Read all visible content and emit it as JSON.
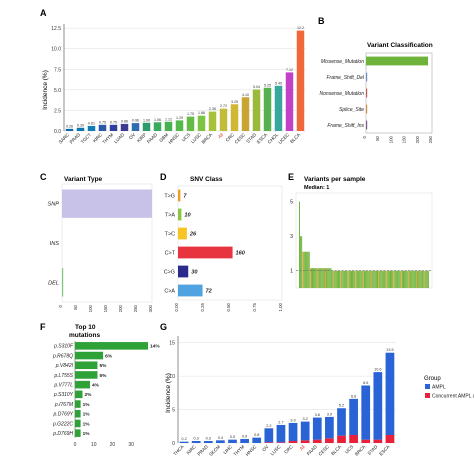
{
  "chart_data": [
    {
      "panel": "A",
      "type": "bar",
      "ylabel": "Incidence (%)",
      "ylim": [
        0,
        13
      ],
      "yticks": [
        "0.0",
        "2.5",
        "5.0",
        "7.5",
        "10.0",
        "12.5"
      ],
      "ytick_values": [
        0,
        2.5,
        5,
        7.5,
        10,
        12.5
      ],
      "grid": true,
      "categories": [
        "SARC",
        "PRAD",
        "TGCT",
        "KIRC",
        "THYM",
        "LUAD",
        "OV",
        "KIRP",
        "PAAD",
        "GBM",
        "HNSC",
        "UCS",
        "LUSC",
        "BRCA",
        "All",
        "CRC",
        "CESC",
        "STAD",
        "ESCA",
        "CHOL",
        "UCEC",
        "BLCA"
      ],
      "values": [
        0.26,
        0.39,
        0.61,
        0.75,
        0.75,
        0.86,
        0.96,
        1.0,
        1.06,
        1.12,
        1.29,
        1.75,
        1.86,
        2.36,
        2.72,
        3.25,
        4.1,
        5.04,
        5.25,
        5.49,
        7.12,
        12.2
      ],
      "value_labels": [
        "0.26",
        "0.39",
        "0.61",
        "0.75",
        "0.75",
        "0.86",
        "0.96",
        "1.00",
        "1.06",
        "1.12",
        "1.29",
        "1.75",
        "1.86",
        "2.36",
        "2.72",
        "3.25",
        "4.10",
        "5.04",
        "5.25",
        "5.49",
        "7.12",
        "12.2"
      ],
      "colors": [
        "#0b6aa6",
        "#0c75b0",
        "#0e7cb6",
        "#2b57a8",
        "#303f9f",
        "#3d3a92",
        "#2f6db2",
        "#2c9c6f",
        "#3aab5c",
        "#48b050",
        "#54b84a",
        "#64bc46",
        "#7cc542",
        "#a8c13b",
        "#c2bd39",
        "#d1b834",
        "#c8a532",
        "#9bba3c",
        "#55b04f",
        "#3aa6a0",
        "#c341c6",
        "#f0683a"
      ]
    },
    {
      "panel": "B",
      "type": "bar",
      "orientation": "horizontal",
      "title": "Variant Classification",
      "categories": [
        "Missense_Mutation",
        "Frame_Shift_Del",
        "Nonsense_Mutation",
        "Splice_Site",
        "Frame_Shift_Ins"
      ],
      "values": [
        235,
        4,
        4,
        3,
        2
      ],
      "colors": [
        "#6fb43a",
        "#6c8fc8",
        "#c25b57",
        "#d08e4a",
        "#7a5c8c"
      ],
      "xticks": [
        "0",
        "50",
        "100",
        "150",
        "200",
        "250"
      ],
      "xlim": [
        0,
        250
      ]
    },
    {
      "panel": "C",
      "type": "bar",
      "orientation": "horizontal",
      "title": "Variant Type",
      "categories": [
        "SNP",
        "INS",
        "DEL"
      ],
      "values": [
        300,
        0,
        3
      ],
      "colors": [
        "#c9c2e8",
        "#c9c2e8",
        "#7ec87a"
      ],
      "xticks": [
        "0",
        "50",
        "100",
        "150",
        "200",
        "250",
        "300"
      ],
      "xlim": [
        0,
        300
      ]
    },
    {
      "panel": "D",
      "type": "bar",
      "orientation": "horizontal",
      "title": "SNV Class",
      "categories": [
        "T>G",
        "T>A",
        "T>C",
        "C>T",
        "C>G",
        "C>A"
      ],
      "values": [
        7,
        10,
        26,
        160,
        30,
        72
      ],
      "value_labels": [
        "7",
        "10",
        "26",
        "160",
        "30",
        "72"
      ],
      "colors": [
        "#f29b25",
        "#8cc63f",
        "#f6c523",
        "#e8343f",
        "#2b2a8c",
        "#4fa3e0"
      ],
      "xticks": [
        "0.00",
        "0.25",
        "0.50",
        "0.75",
        "1.00"
      ],
      "xlim": [
        0,
        1
      ]
    },
    {
      "panel": "E",
      "type": "bar",
      "title": "Variants per sample",
      "subtitle": "Median: 1",
      "yticks": [
        "1",
        "3",
        "5"
      ],
      "ylim": [
        0,
        5.5
      ],
      "median": 1,
      "colors": [
        "#6fb43a",
        "#e8a33a",
        "#c25b57"
      ]
    },
    {
      "panel": "F",
      "type": "bar",
      "orientation": "horizontal",
      "title": "Top 10 mutations",
      "categories": [
        "p.S310F",
        "p.R678Q",
        "p.V842I",
        "p.L755S",
        "p.V777L",
        "p.S310Y",
        "p.I767M",
        "p.D769Y",
        "p.G222C",
        "p.D769H"
      ],
      "values": [
        39,
        15,
        12,
        12,
        8,
        4,
        3,
        3,
        3,
        3
      ],
      "value_labels": [
        "14%",
        "6%",
        "5%",
        "5%",
        "4%",
        "2%",
        "1%",
        "1%",
        "1%",
        "1%"
      ],
      "color": "#2ea236",
      "xticks": [
        "0",
        "10",
        "20",
        "30"
      ],
      "xlim": [
        0,
        39
      ]
    },
    {
      "panel": "G",
      "type": "bar",
      "stacked": true,
      "ylabel": "Incidence (%)",
      "ylim": [
        0,
        16
      ],
      "yticks": [
        "0",
        "5",
        "10",
        "15"
      ],
      "ytick_values": [
        0,
        5,
        10,
        15
      ],
      "grid": true,
      "categories": [
        "THCA",
        "KIRC",
        "PRAD",
        "SKCM",
        "LIHC",
        "THYM",
        "HNSC",
        "OV",
        "LUSC",
        "CRC",
        "All",
        "PAAD",
        "CESC",
        "BLCA",
        "UCS",
        "BRCA",
        "STAD",
        "ESCA"
      ],
      "series": [
        {
          "name": "AMPL",
          "values": [
            0.2,
            0.3,
            0.3,
            0.4,
            0.5,
            0.6,
            0.8,
            2.1,
            2.6,
            2.7,
            2.8,
            3.3,
            3.2,
            4.1,
            5.4,
            8.1,
            10.1,
            12.3
          ],
          "color": "#2a63d6"
        },
        {
          "name": "Concurrent AMPL and Mut",
          "values": [
            0,
            0,
            0,
            0,
            0,
            0,
            0,
            0.1,
            0.1,
            0.3,
            0.4,
            0.5,
            0.7,
            1.1,
            1.2,
            0.5,
            0.5,
            1.2
          ],
          "color": "#e8203a"
        }
      ],
      "totals_labels": [
        "0.2",
        "0.3",
        "0.3",
        "0.4",
        "0.5",
        "0.6",
        "0.8",
        "2.2",
        "2.7",
        "3.0",
        "3.2",
        "3.8",
        "3.9",
        "5.2",
        "6.6",
        "8.6",
        "10.6",
        "13.5"
      ],
      "legend_title": "Group",
      "legend_position": "right"
    }
  ],
  "panel_labels": [
    "A",
    "B",
    "C",
    "D",
    "E",
    "F",
    "G"
  ]
}
